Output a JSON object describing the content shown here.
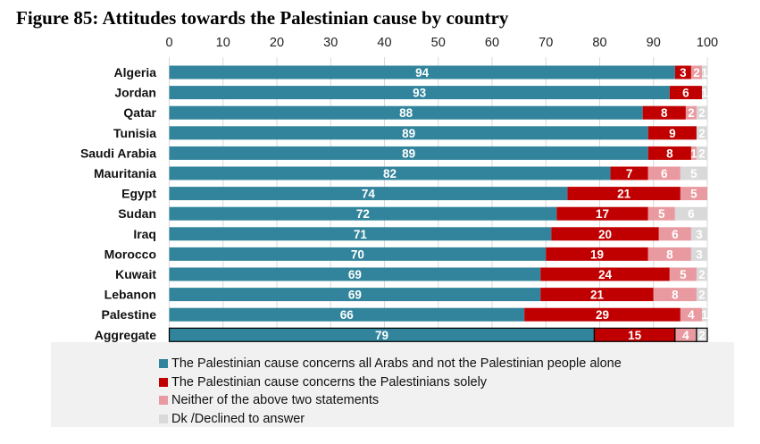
{
  "title": "Figure 85: Attitudes towards the Palestinian cause by country",
  "chart_data": {
    "type": "bar",
    "orientation": "horizontal",
    "stacked": true,
    "title": "Figure 85: Attitudes towards the Palestinian cause by country",
    "xlim": [
      0,
      100
    ],
    "xticks": [
      0,
      10,
      20,
      30,
      40,
      50,
      60,
      70,
      80,
      90,
      100
    ],
    "grid": true,
    "legend_position": "bottom",
    "categories": [
      "Algeria",
      "Jordan",
      "Qatar",
      "Tunisia",
      "Saudi Arabia",
      "Mauritania",
      "Egypt",
      "Sudan",
      "Iraq",
      "Morocco",
      "Kuwait",
      "Lebanon",
      "Palestine",
      "Aggregate"
    ],
    "series": [
      {
        "name": "The Palestinian cause concerns all Arabs and not the Palestinian people alone",
        "color": "#31849b",
        "values": [
          94,
          93,
          88,
          89,
          89,
          82,
          74,
          72,
          71,
          70,
          69,
          69,
          66,
          79
        ]
      },
      {
        "name": "The Palestinian cause concerns the Palestinians solely",
        "color": "#c00000",
        "values": [
          3,
          6,
          8,
          9,
          8,
          7,
          21,
          17,
          20,
          19,
          24,
          21,
          29,
          15
        ]
      },
      {
        "name": "Neither of the above two statements",
        "color": "#e99aa0",
        "values": [
          2,
          0,
          2,
          0,
          1,
          6,
          5,
          5,
          6,
          8,
          5,
          8,
          4,
          4
        ]
      },
      {
        "name": "Dk /Declined to answer",
        "color": "#d9d9d9",
        "values": [
          1,
          1,
          2,
          2,
          2,
          5,
          0,
          6,
          3,
          3,
          2,
          2,
          1,
          2
        ]
      }
    ],
    "highlighted_category": "Aggregate"
  }
}
